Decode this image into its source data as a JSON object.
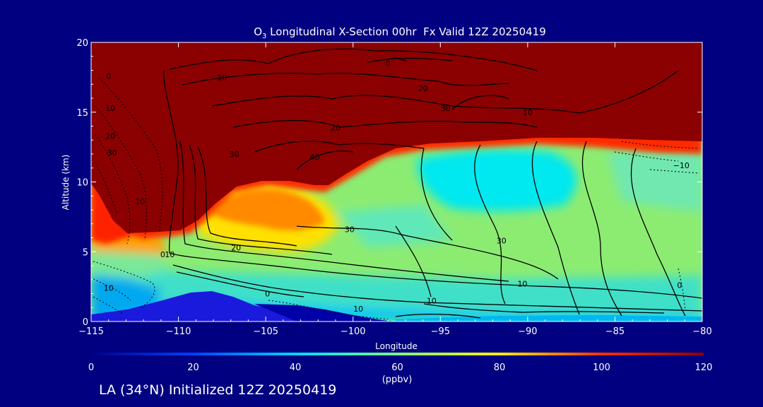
{
  "chart_data": {
    "type": "heatmap",
    "title_species": "O",
    "title_subscript": "3",
    "title_rest": " Longitudinal X-Section 00hr  Fx Valid 12Z 20250419",
    "xlabel": "Longitude",
    "ylabel": "Altitude (km)",
    "xlim": [
      -115,
      -80
    ],
    "ylim": [
      0,
      20
    ],
    "x_ticks": [
      -115,
      -110,
      -105,
      -100,
      -95,
      -90,
      -85,
      -80
    ],
    "x_tick_labels": [
      "−115",
      "−110",
      "−105",
      "−100",
      "−95",
      "−90",
      "−85",
      "−80"
    ],
    "y_ticks": [
      0,
      5,
      10,
      15,
      20
    ],
    "y_tick_labels": [
      "0",
      "5",
      "10",
      "15",
      "20"
    ],
    "colorbar": {
      "min": 0,
      "max": 120,
      "ticks": [
        0,
        20,
        40,
        60,
        80,
        100,
        120
      ],
      "tick_labels": [
        "0",
        "20",
        "40",
        "60",
        "80",
        "100",
        "120"
      ],
      "units": "(ppbv)",
      "colors": [
        "#000088",
        "#0040ff",
        "#00d8ff",
        "#7cff80",
        "#ffee00",
        "#ff3000",
        "#8b0000"
      ]
    },
    "contour_labels": [
      {
        "text": "0",
        "x": -114.0,
        "y": 17.6
      },
      {
        "text": "10",
        "x": -113.9,
        "y": 15.3
      },
      {
        "text": "20",
        "x": -113.9,
        "y": 13.3
      },
      {
        "text": "30",
        "x": -113.8,
        "y": 12.1
      },
      {
        "text": "10",
        "x": -112.2,
        "y": 8.6
      },
      {
        "text": "0",
        "x": -110.9,
        "y": 4.8
      },
      {
        "text": "10",
        "x": -114.0,
        "y": 2.4
      },
      {
        "text": "10",
        "x": -107.5,
        "y": 17.5
      },
      {
        "text": "0",
        "x": -98.0,
        "y": 18.5
      },
      {
        "text": "20",
        "x": -96.0,
        "y": 16.7
      },
      {
        "text": "30",
        "x": -94.7,
        "y": 15.3
      },
      {
        "text": "10",
        "x": -90.0,
        "y": 15.0
      },
      {
        "text": "20",
        "x": -101.0,
        "y": 13.9
      },
      {
        "text": "30",
        "x": -106.8,
        "y": 12.0
      },
      {
        "text": "40",
        "x": -102.2,
        "y": 11.8
      },
      {
        "text": "20",
        "x": -106.7,
        "y": 5.3
      },
      {
        "text": "10",
        "x": -110.5,
        "y": 4.8
      },
      {
        "text": "30",
        "x": -100.2,
        "y": 6.6
      },
      {
        "text": "30",
        "x": -91.5,
        "y": 5.8
      },
      {
        "text": "10",
        "x": -90.3,
        "y": 2.7
      },
      {
        "text": "10",
        "x": -95.5,
        "y": 1.5
      },
      {
        "text": "0",
        "x": -104.9,
        "y": 2.0
      },
      {
        "text": "10",
        "x": -99.7,
        "y": 0.9
      },
      {
        "text": "0",
        "x": -81.3,
        "y": 2.6
      },
      {
        "text": "−10",
        "x": -81.2,
        "y": 11.2
      }
    ]
  },
  "footer": {
    "caption": "LA (34°N) Initialized 12Z 20250419"
  }
}
